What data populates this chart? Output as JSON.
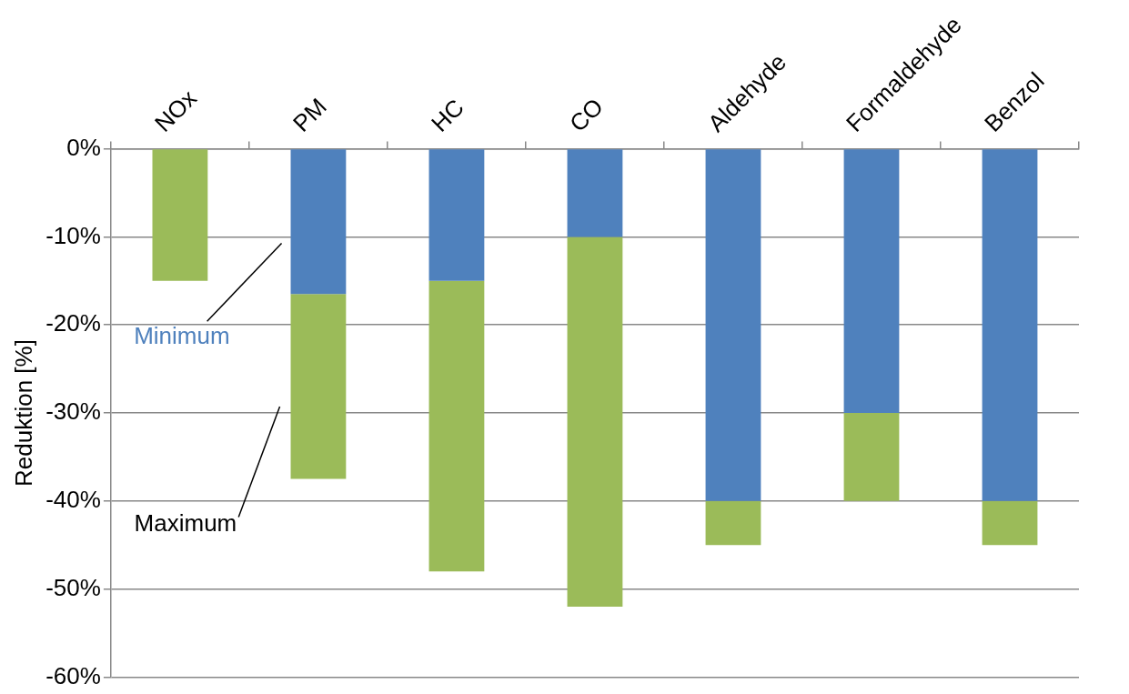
{
  "chart_data": {
    "type": "bar",
    "stacked": true,
    "ylabel": "Reduktion [%]",
    "categories": [
      "NOx",
      "PM",
      "HC",
      "CO",
      "Aldehyde",
      "Formaldehyde",
      "Benzol"
    ],
    "series": [
      {
        "name": "Minimum",
        "color": "#4f81bd",
        "values": [
          0,
          -16.5,
          -15,
          -10,
          -40,
          -30,
          -40
        ]
      },
      {
        "name": "Maximum",
        "color": "#9bbb59",
        "values": [
          -15,
          -21,
          -33,
          -42,
          -5,
          -10,
          -5
        ]
      }
    ],
    "ylim": [
      -60,
      0
    ],
    "yticks": [
      {
        "value": 0,
        "label": "0%"
      },
      {
        "value": -10,
        "label": "-10%"
      },
      {
        "value": -20,
        "label": "-20%"
      },
      {
        "value": -30,
        "label": "-30%"
      },
      {
        "value": -40,
        "label": "-40%"
      },
      {
        "value": -50,
        "label": "-50%"
      },
      {
        "value": -60,
        "label": "-60%"
      }
    ],
    "grid": "y",
    "legend": false
  }
}
